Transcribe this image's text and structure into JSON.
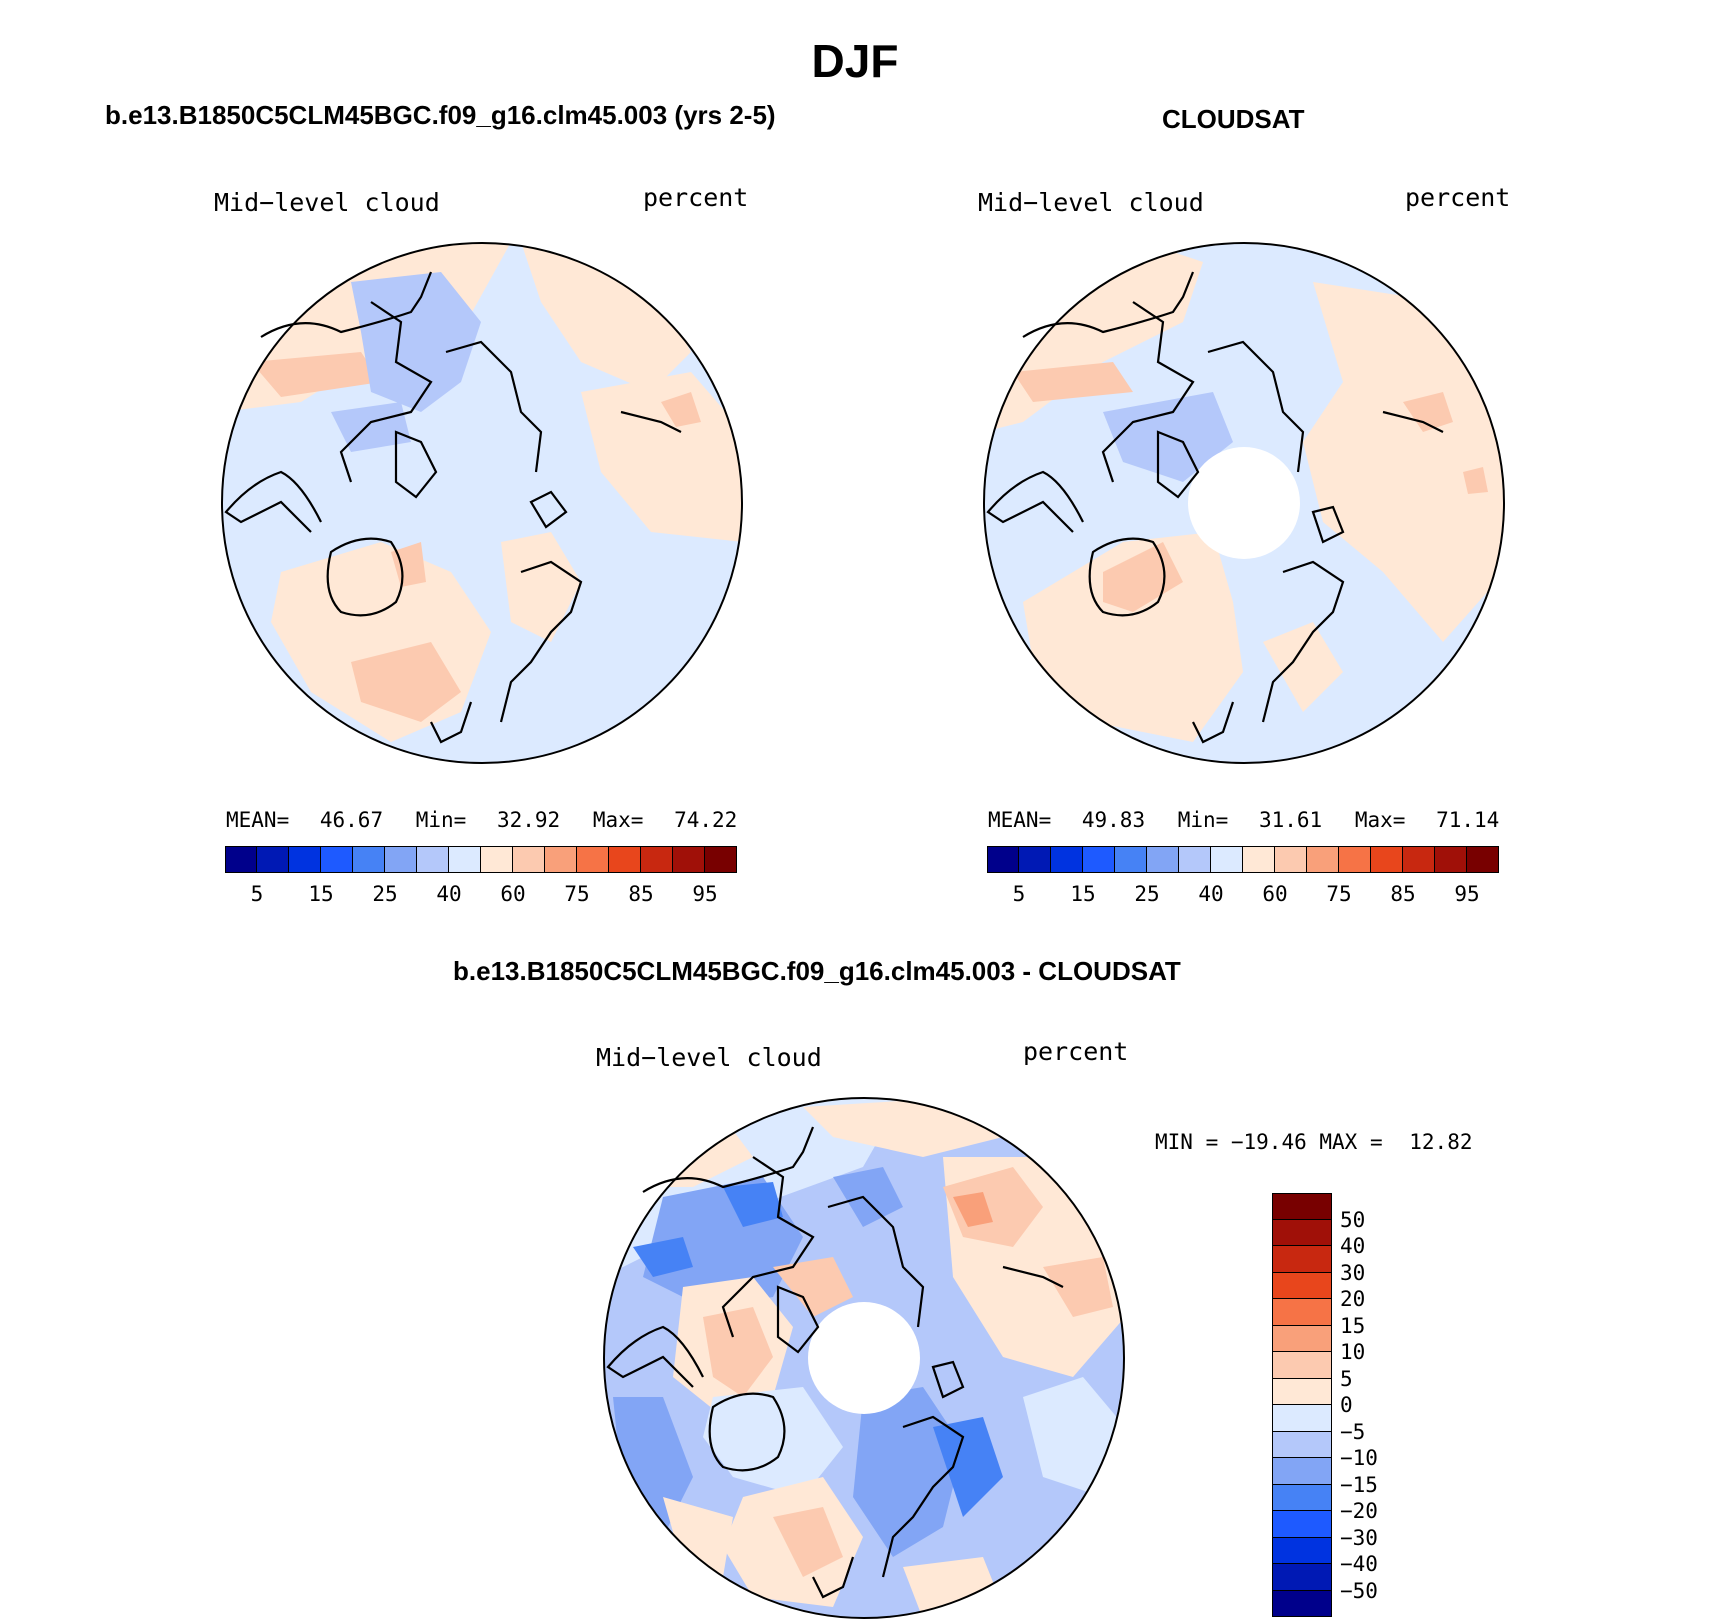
{
  "title": "DJF",
  "panels": [
    {
      "id": "model",
      "title": "b.e13.B1850C5CLM45BGC.f09_g16.clm45.003 (yrs 2-5)",
      "left_label": "Mid−level cloud",
      "right_label": "percent",
      "stats": {
        "mean_label": "MEAN=",
        "mean": "46.67",
        "min_label": "Min=",
        "min": "32.92",
        "max_label": "Max=",
        "max": "74.22"
      },
      "polar_hole": false
    },
    {
      "id": "obs",
      "title": "CLOUDSAT",
      "left_label": "Mid−level cloud",
      "right_label": "percent",
      "stats": {
        "mean_label": "MEAN=",
        "mean": "49.83",
        "min_label": "Min=",
        "min": "31.61",
        "max_label": "Max=",
        "max": "71.14"
      },
      "polar_hole": true
    },
    {
      "id": "diff",
      "title": "b.e13.B1850C5CLM45BGC.f09_g16.clm45.003 - CLOUDSAT",
      "left_label": "Mid−level cloud",
      "right_label": "percent",
      "stats": {
        "min_label": "MIN =",
        "min": "−19.46",
        "max_label": "MAX =",
        "max": "12.82"
      },
      "polar_hole": true
    }
  ],
  "colorbar_abs": {
    "colors": [
      "#00008b",
      "#0019b4",
      "#0033e0",
      "#1e5aff",
      "#4682f5",
      "#82a5f5",
      "#b4c8fa",
      "#dceaff",
      "#ffe8d6",
      "#fccab0",
      "#f9a07a",
      "#f67346",
      "#e8461c",
      "#c82810",
      "#a01008",
      "#780000"
    ],
    "tick_labels": [
      "5",
      "15",
      "25",
      "40",
      "60",
      "75",
      "85",
      "95"
    ]
  },
  "colorbar_diff": {
    "colors": [
      "#780000",
      "#a01008",
      "#c82810",
      "#e8461c",
      "#f67346",
      "#f9a07a",
      "#fccab0",
      "#ffe8d6",
      "#dceaff",
      "#b4c8fa",
      "#82a5f5",
      "#4682f5",
      "#1e5aff",
      "#0033e0",
      "#0019b4",
      "#00008b"
    ],
    "tick_labels": [
      "50",
      "40",
      "30",
      "20",
      "15",
      "10",
      "5",
      "0",
      "−5",
      "−10",
      "−15",
      "−20",
      "−30",
      "−40",
      "−50"
    ]
  }
}
